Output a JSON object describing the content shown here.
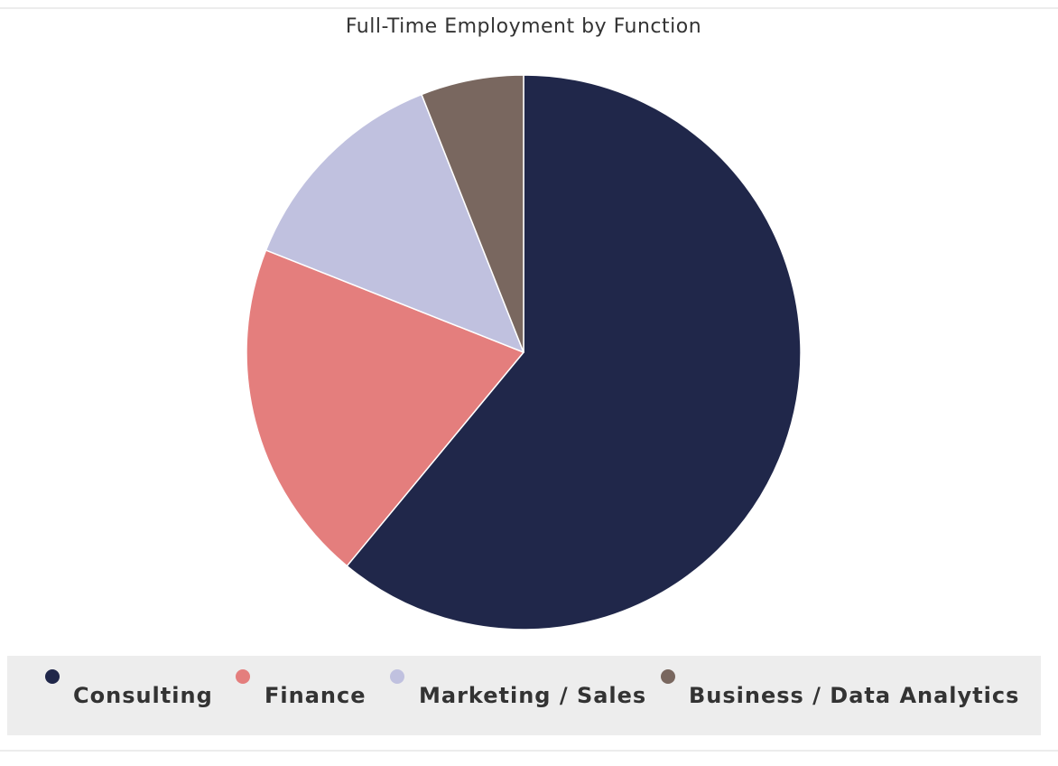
{
  "chart_data": {
    "type": "pie",
    "title": "Full-Time Employment by Function",
    "categories": [
      "Consulting",
      "Finance",
      "Marketing / Sales",
      "Business / Data Analytics"
    ],
    "values": [
      61,
      20,
      13,
      6
    ],
    "unit": "percent (estimated)",
    "colors": [
      "#20274a",
      "#e47e7d",
      "#c0c1df",
      "#79675f"
    ],
    "legend_position": "bottom",
    "start_angle": "12 o'clock, clockwise"
  }
}
